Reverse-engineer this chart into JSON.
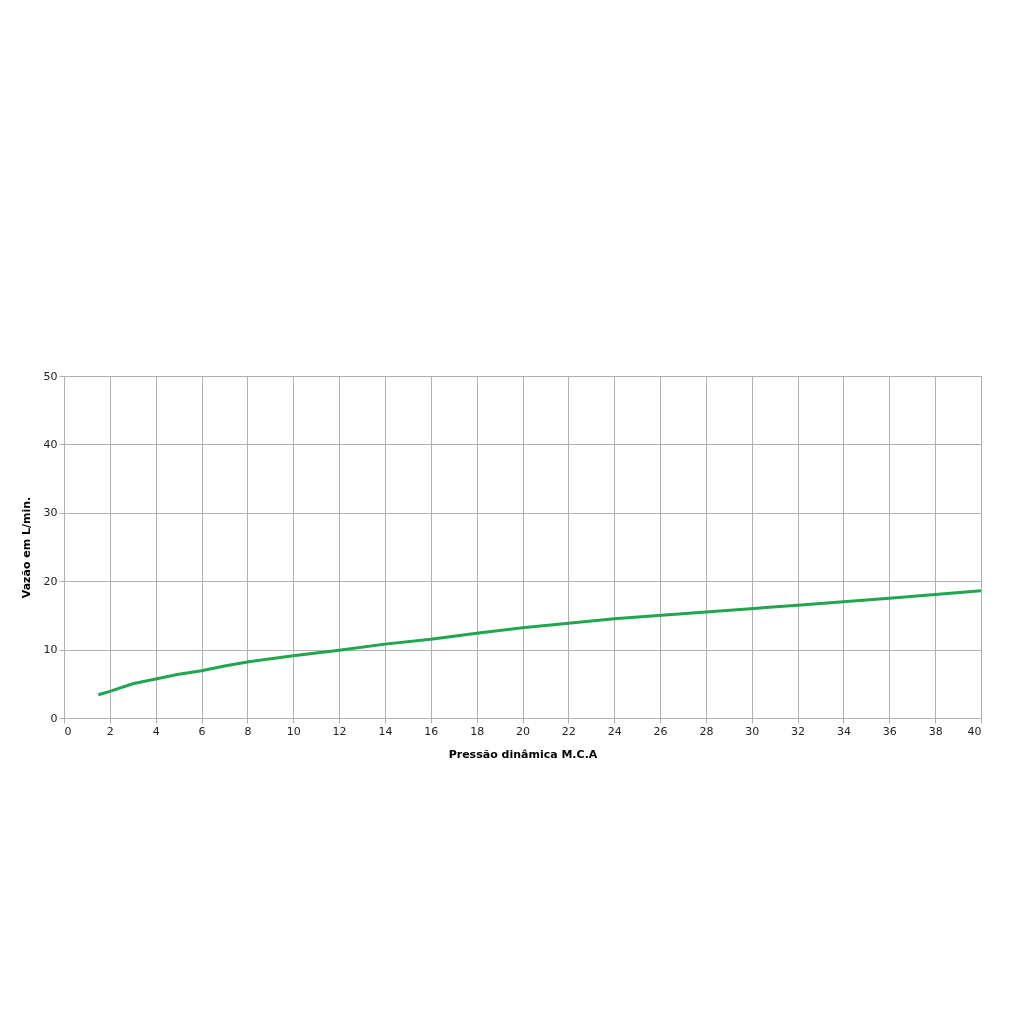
{
  "chart_data": {
    "type": "line",
    "xlabel": "Pressão dinâmica M.C.A",
    "ylabel": "Vazão em L/min.",
    "x": [
      1.5,
      2,
      3,
      4,
      5,
      6,
      7,
      8,
      10,
      12,
      14,
      16,
      18,
      20,
      24,
      28,
      32,
      36,
      40
    ],
    "series": [
      {
        "color": "#1fa64f",
        "values": [
          3.4,
          3.9,
          5.0,
          5.7,
          6.4,
          6.9,
          7.6,
          8.2,
          9.1,
          9.9,
          10.8,
          11.5,
          12.4,
          13.2,
          14.5,
          15.5,
          16.5,
          17.5,
          18.6
        ]
      }
    ],
    "xlim": [
      0,
      40
    ],
    "xticks": [
      0,
      2,
      4,
      6,
      8,
      10,
      12,
      14,
      16,
      18,
      20,
      22,
      24,
      26,
      28,
      30,
      32,
      34,
      36,
      38,
      40
    ],
    "ylim": [
      0,
      50
    ],
    "yticks": [
      0,
      10,
      20,
      30,
      40,
      50
    ],
    "grid": true,
    "marker": "none",
    "line_style": "solid"
  }
}
